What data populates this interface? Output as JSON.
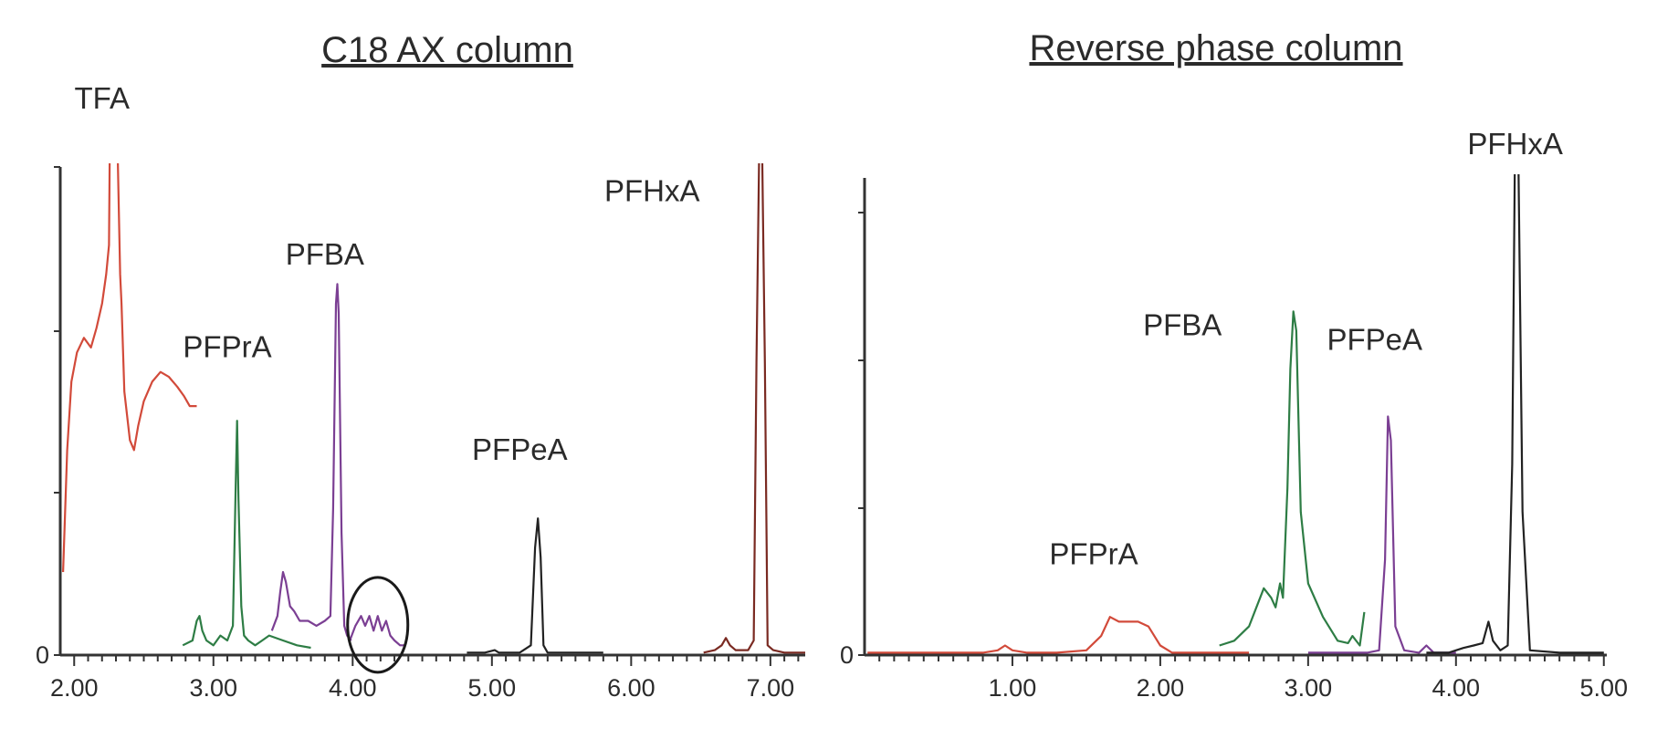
{
  "chart_data": [
    {
      "type": "line",
      "title": "C18 AX column",
      "xlabel": "",
      "ylabel": "",
      "xlim": [
        1.9,
        7.25
      ],
      "ylim": [
        0,
        100
      ],
      "x_tick_labels": [
        "2.00",
        "3.00",
        "4.00",
        "5.00",
        "6.00",
        "7.00"
      ],
      "y_tick_labels": [
        "0"
      ],
      "series": [
        {
          "name": "TFA",
          "label_pos": [
            2.2,
            112
          ],
          "color": "#d24a3a",
          "x": [
            1.92,
            1.95,
            1.98,
            2.02,
            2.07,
            2.12,
            2.16,
            2.2,
            2.23,
            2.25,
            2.26,
            2.3,
            2.33,
            2.34,
            2.36,
            2.4,
            2.43,
            2.46,
            2.5,
            2.56,
            2.62,
            2.68,
            2.74,
            2.79,
            2.83,
            2.88
          ],
          "y": [
            17,
            42,
            56,
            62,
            65,
            63,
            67,
            72,
            78,
            84,
            120,
            120,
            78,
            72,
            54,
            44,
            42,
            47,
            52,
            56,
            58,
            57,
            55,
            53,
            51,
            51
          ]
        },
        {
          "name": "PFPrA",
          "label_pos": [
            3.1,
            61
          ],
          "color": "#2e7d45",
          "x": [
            2.78,
            2.85,
            2.88,
            2.9,
            2.92,
            2.95,
            3.0,
            3.05,
            3.1,
            3.14,
            3.16,
            3.17,
            3.18,
            3.2,
            3.22,
            3.25,
            3.3,
            3.35,
            3.4,
            3.5,
            3.6,
            3.7
          ],
          "y": [
            2,
            3,
            7,
            8,
            5,
            3,
            2,
            4,
            3,
            6,
            35,
            48,
            32,
            10,
            4,
            3,
            2,
            3,
            4,
            3,
            2,
            1.5
          ]
        },
        {
          "name": "PFBA",
          "label_pos": [
            3.8,
            80
          ],
          "color": "#7b3f93",
          "x": [
            3.42,
            3.46,
            3.48,
            3.5,
            3.52,
            3.55,
            3.58,
            3.62,
            3.68,
            3.74,
            3.8,
            3.84,
            3.86,
            3.88,
            3.89,
            3.9,
            3.92,
            3.94,
            3.96,
            3.99
          ],
          "y": [
            5,
            8,
            13,
            17,
            15,
            10,
            9,
            7,
            7,
            6,
            7,
            8,
            30,
            72,
            76,
            70,
            25,
            6,
            4,
            3
          ]
        },
        {
          "name": "",
          "label_pos": null,
          "color": "#7b3f93",
          "x": [
            3.98,
            4.02,
            4.06,
            4.09,
            4.12,
            4.15,
            4.18,
            4.21,
            4.24,
            4.27,
            4.3,
            4.34,
            4.38
          ],
          "y": [
            3,
            6,
            8,
            6,
            8,
            5,
            8,
            5,
            7,
            4,
            3,
            2,
            2
          ]
        },
        {
          "name": "PFPeA",
          "label_pos": [
            5.2,
            40
          ],
          "color": "#222222",
          "x": [
            4.82,
            4.95,
            5.02,
            5.05,
            5.2,
            5.28,
            5.31,
            5.33,
            5.35,
            5.37,
            5.4,
            5.5,
            5.65,
            5.8
          ],
          "y": [
            0.5,
            0.5,
            1,
            0.5,
            0.5,
            2,
            22,
            28,
            20,
            2,
            0.5,
            0.5,
            0.5,
            0.5
          ]
        },
        {
          "name": "PFHxA",
          "label_pos": [
            6.15,
            93
          ],
          "color": "#7a2a22",
          "x": [
            6.52,
            6.6,
            6.65,
            6.68,
            6.71,
            6.75,
            6.84,
            6.88,
            6.9,
            6.92,
            6.94,
            6.96,
            6.98,
            7.02,
            7.1,
            7.25
          ],
          "y": [
            0.5,
            1,
            2,
            3.5,
            2,
            1,
            1,
            3,
            60,
            105,
            105,
            60,
            2,
            1,
            0.5,
            0.5
          ]
        }
      ]
    },
    {
      "type": "line",
      "title": "Reverse phase column",
      "xlabel": "",
      "ylabel": "",
      "xlim": [
        0.0,
        5.02
      ],
      "ylim": [
        0,
        100
      ],
      "x_tick_labels": [
        "1.00",
        "2.00",
        "3.00",
        "4.00",
        "5.00"
      ],
      "y_tick_labels": [
        "0"
      ],
      "series": [
        {
          "name": "PFPrA",
          "label_pos": [
            1.55,
            19
          ],
          "color": "#d24a3a",
          "x": [
            0.02,
            0.5,
            0.8,
            0.9,
            0.95,
            1.0,
            1.1,
            1.3,
            1.5,
            1.6,
            1.66,
            1.72,
            1.78,
            1.85,
            1.92,
            2.0,
            2.08,
            2.2,
            2.4,
            2.6
          ],
          "y": [
            0.5,
            0.5,
            0.5,
            1,
            2,
            1,
            0.5,
            0.5,
            1,
            4,
            8,
            7,
            7,
            7,
            6,
            2,
            0.5,
            0.5,
            0.5,
            0.5
          ]
        },
        {
          "name": "PFBA",
          "label_pos": [
            2.15,
            67
          ],
          "color": "#2e7d45",
          "x": [
            2.4,
            2.5,
            2.6,
            2.65,
            2.7,
            2.75,
            2.78,
            2.81,
            2.83,
            2.86,
            2.88,
            2.9,
            2.92,
            2.95,
            3.0,
            3.1,
            3.2,
            3.27,
            3.3,
            3.35,
            3.38
          ],
          "y": [
            2,
            3,
            6,
            10,
            14,
            12,
            10,
            15,
            12,
            35,
            60,
            72,
            68,
            30,
            15,
            8,
            3,
            2.5,
            4,
            2,
            9
          ]
        },
        {
          "name": "PFPeA",
          "label_pos": [
            3.45,
            64
          ],
          "color": "#7b3f93",
          "x": [
            3.0,
            3.2,
            3.4,
            3.48,
            3.52,
            3.54,
            3.56,
            3.59,
            3.65,
            3.75,
            3.8,
            3.85,
            3.9,
            4.0
          ],
          "y": [
            0.5,
            0.5,
            0.5,
            1,
            20,
            50,
            45,
            6,
            1,
            0.5,
            2,
            0.5,
            0.5,
            0.5
          ]
        },
        {
          "name": "PFHxA",
          "label_pos": [
            4.4,
            105
          ],
          "color": "#222222",
          "x": [
            3.8,
            3.95,
            4.05,
            4.12,
            4.18,
            4.22,
            4.25,
            4.3,
            4.35,
            4.38,
            4.4,
            4.42,
            4.45,
            4.5,
            4.7,
            5.0
          ],
          "y": [
            0.5,
            0.5,
            1.5,
            2,
            2.5,
            7,
            3,
            1,
            2,
            40,
            110,
            110,
            30,
            1,
            0.5,
            0.5
          ]
        }
      ]
    }
  ]
}
